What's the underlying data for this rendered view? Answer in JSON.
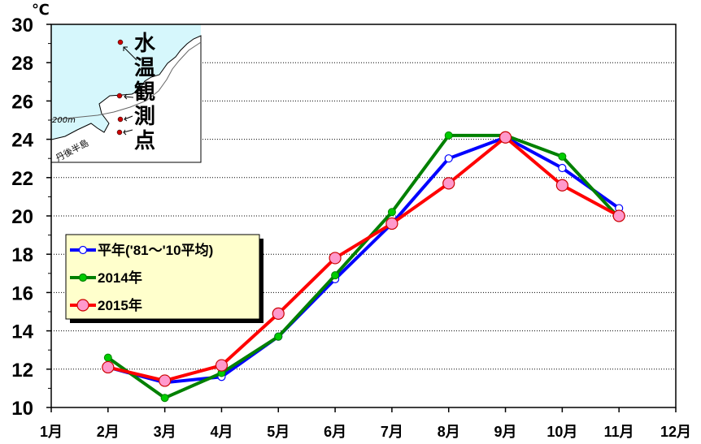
{
  "chart_data": {
    "type": "line",
    "unit": "℃",
    "categories": [
      "1月",
      "2月",
      "3月",
      "4月",
      "5月",
      "6月",
      "7月",
      "8月",
      "9月",
      "10月",
      "11月",
      "12月"
    ],
    "ylim": [
      10,
      30
    ],
    "yticks": [
      10,
      12,
      14,
      16,
      18,
      20,
      22,
      24,
      26,
      28,
      30
    ],
    "grid": true,
    "legend_position": "center-left",
    "series": [
      {
        "name": "平年('81～'10平均)",
        "color": "#0000ff",
        "marker_fill": "#ffffff",
        "values": [
          null,
          12.1,
          11.3,
          11.6,
          13.7,
          16.7,
          19.6,
          23.0,
          24.1,
          22.5,
          20.4,
          null
        ]
      },
      {
        "name": "2014年",
        "color": "#008000",
        "marker_fill": "#00cc00",
        "values": [
          null,
          12.6,
          10.5,
          11.8,
          13.7,
          16.9,
          20.2,
          24.2,
          24.2,
          23.1,
          19.9,
          null
        ]
      },
      {
        "name": "2015年",
        "color": "#ff0000",
        "marker_fill": "#ff99cc",
        "values": [
          null,
          12.1,
          11.4,
          12.2,
          14.9,
          17.8,
          19.6,
          21.7,
          24.1,
          21.6,
          20.0,
          null
        ]
      }
    ]
  },
  "inset_map": {
    "caption": "水温観測点",
    "depth_label": "200m",
    "peninsula_label": "丹後半島"
  }
}
